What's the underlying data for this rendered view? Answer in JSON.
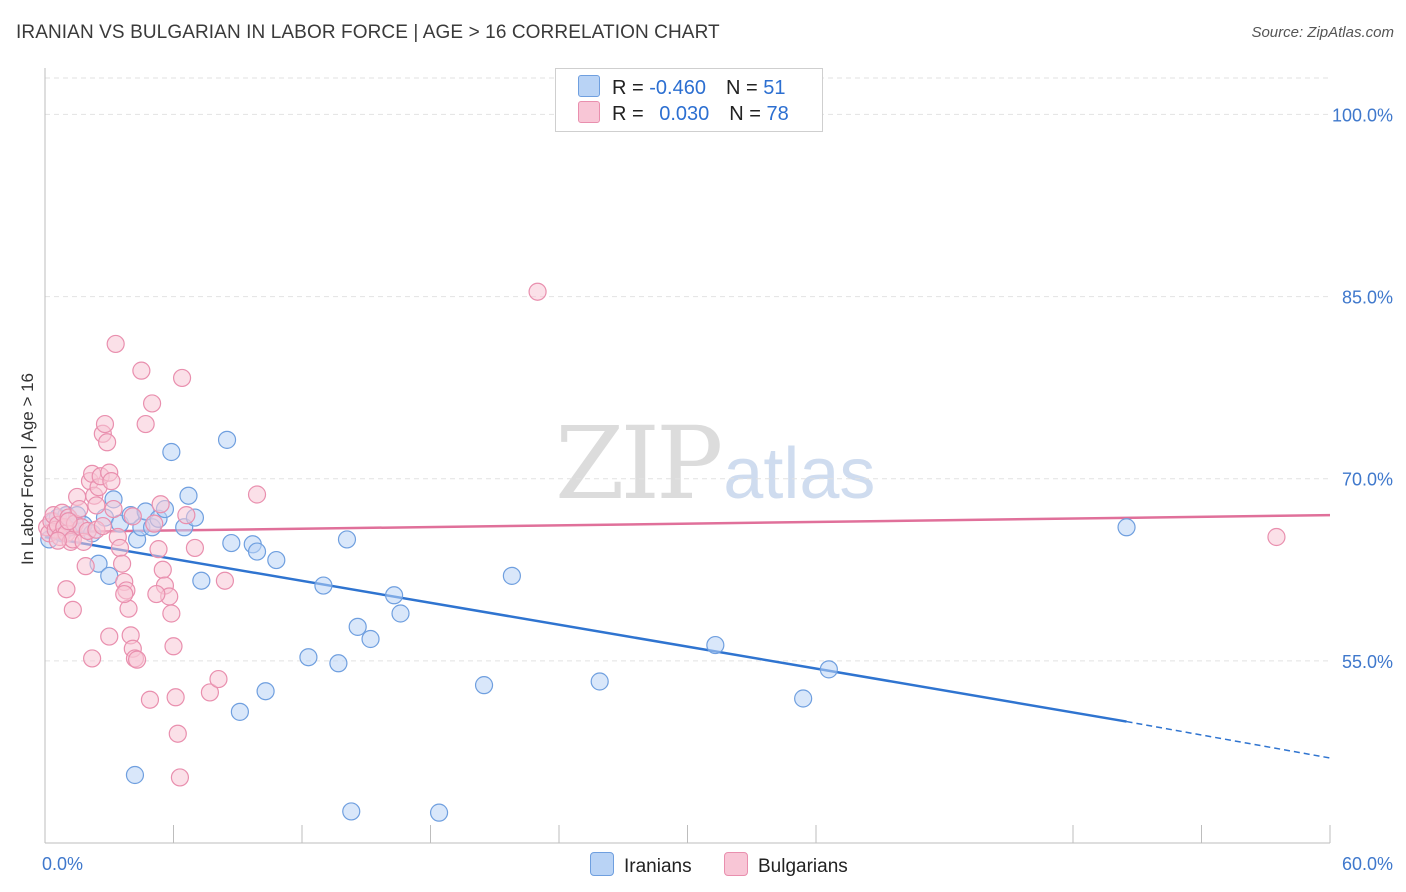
{
  "title": "IRANIAN VS BULGARIAN IN LABOR FORCE | AGE > 16 CORRELATION CHART",
  "source": "Source: ZipAtlas.com",
  "watermark": {
    "part1": "ZIP",
    "part2": "atlas"
  },
  "legend": {
    "rows": [
      {
        "r_label": "R = ",
        "r_value": "-0.460",
        "n_label": "N = ",
        "n_value": "51"
      },
      {
        "r_label": "R = ",
        "r_value": "0.030",
        "n_label": "N = ",
        "n_value": "78"
      }
    ]
  },
  "bottom_legend": {
    "iranians": "Iranians",
    "bulgarians": "Bulgarians"
  },
  "colors": {
    "iranian_fill": "#b9d3f5",
    "iranian_stroke": "#6f9fdf",
    "iranian_line": "#2f74d0",
    "bulgarian_fill": "#f8c6d6",
    "bulgarian_stroke": "#e98fae",
    "bulgarian_line": "#e0709a",
    "tick_label": "#3f78cc"
  },
  "chart_data": {
    "type": "scatter",
    "title": "IRANIAN VS BULGARIAN IN LABOR FORCE | AGE > 16 CORRELATION CHART",
    "xlabel": "",
    "ylabel": "In Labor Force | Age > 16",
    "xlim": [
      0,
      60
    ],
    "ylim": [
      40,
      103
    ],
    "x_tick_labels": [
      {
        "value": 0,
        "label": "0.0%"
      },
      {
        "value": 60,
        "label": "60.0%"
      }
    ],
    "y_tick_labels": [
      {
        "value": 55,
        "label": "55.0%"
      },
      {
        "value": 70,
        "label": "70.0%"
      },
      {
        "value": 85,
        "label": "85.0%"
      },
      {
        "value": 100,
        "label": "100.0%"
      }
    ],
    "x_minor_ticks": [
      6,
      12,
      18,
      24,
      30,
      36,
      48,
      54,
      60
    ],
    "grid": true,
    "series": [
      {
        "name": "Iranians",
        "color": "#6f9fdf",
        "points": [
          [
            0.2,
            65.0
          ],
          [
            0.4,
            66.5
          ],
          [
            0.6,
            66.8
          ],
          [
            0.8,
            65.5
          ],
          [
            1.0,
            67.0
          ],
          [
            1.2,
            66.0
          ],
          [
            1.5,
            67.0
          ],
          [
            1.8,
            66.2
          ],
          [
            2.2,
            65.5
          ],
          [
            2.5,
            63.0
          ],
          [
            2.8,
            66.8
          ],
          [
            3.0,
            62.0
          ],
          [
            3.2,
            68.3
          ],
          [
            3.5,
            66.3
          ],
          [
            4.0,
            67.0
          ],
          [
            4.3,
            65.0
          ],
          [
            4.5,
            66.0
          ],
          [
            4.7,
            67.3
          ],
          [
            5.0,
            66.0
          ],
          [
            5.3,
            66.7
          ],
          [
            5.6,
            67.5
          ],
          [
            5.9,
            72.2
          ],
          [
            6.5,
            66.0
          ],
          [
            6.7,
            68.6
          ],
          [
            7.0,
            66.8
          ],
          [
            7.3,
            61.6
          ],
          [
            8.5,
            73.2
          ],
          [
            8.7,
            64.7
          ],
          [
            9.1,
            50.8
          ],
          [
            9.7,
            64.6
          ],
          [
            9.9,
            64.0
          ],
          [
            10.3,
            52.5
          ],
          [
            10.8,
            63.3
          ],
          [
            12.3,
            55.3
          ],
          [
            13.0,
            61.2
          ],
          [
            13.7,
            54.8
          ],
          [
            14.1,
            65.0
          ],
          [
            14.3,
            42.6
          ],
          [
            14.6,
            57.8
          ],
          [
            15.2,
            56.8
          ],
          [
            16.3,
            60.4
          ],
          [
            16.6,
            58.9
          ],
          [
            18.4,
            42.5
          ],
          [
            20.5,
            53.0
          ],
          [
            21.8,
            62.0
          ],
          [
            25.9,
            53.3
          ],
          [
            31.3,
            56.3
          ],
          [
            35.4,
            51.9
          ],
          [
            36.6,
            54.3
          ],
          [
            50.5,
            66.0
          ],
          [
            4.2,
            45.6
          ]
        ]
      },
      {
        "name": "Bulgarians",
        "color": "#e98fae",
        "points": [
          [
            0.1,
            66.0
          ],
          [
            0.2,
            65.5
          ],
          [
            0.3,
            66.5
          ],
          [
            0.4,
            67.0
          ],
          [
            0.5,
            65.8
          ],
          [
            0.6,
            66.2
          ],
          [
            0.7,
            65.2
          ],
          [
            0.8,
            67.2
          ],
          [
            0.9,
            66.0
          ],
          [
            1.0,
            65.5
          ],
          [
            1.1,
            66.8
          ],
          [
            1.2,
            64.8
          ],
          [
            1.3,
            65.0
          ],
          [
            1.4,
            66.3
          ],
          [
            1.5,
            68.5
          ],
          [
            1.6,
            67.5
          ],
          [
            1.7,
            66.0
          ],
          [
            1.8,
            64.8
          ],
          [
            1.9,
            62.8
          ],
          [
            2.0,
            65.7
          ],
          [
            2.1,
            69.8
          ],
          [
            2.2,
            70.4
          ],
          [
            2.3,
            68.6
          ],
          [
            2.4,
            67.8
          ],
          [
            2.5,
            69.3
          ],
          [
            2.6,
            70.2
          ],
          [
            2.7,
            73.7
          ],
          [
            2.8,
            74.5
          ],
          [
            2.9,
            73.0
          ],
          [
            3.0,
            70.5
          ],
          [
            3.1,
            69.8
          ],
          [
            3.2,
            67.5
          ],
          [
            3.3,
            81.1
          ],
          [
            3.4,
            65.2
          ],
          [
            3.5,
            64.3
          ],
          [
            3.6,
            63.0
          ],
          [
            3.7,
            61.5
          ],
          [
            3.8,
            60.8
          ],
          [
            3.9,
            59.3
          ],
          [
            4.0,
            57.1
          ],
          [
            4.1,
            56.0
          ],
          [
            4.2,
            55.2
          ],
          [
            4.3,
            55.1
          ],
          [
            4.5,
            78.9
          ],
          [
            4.7,
            74.5
          ],
          [
            5.0,
            76.2
          ],
          [
            5.1,
            66.3
          ],
          [
            5.3,
            64.2
          ],
          [
            5.5,
            62.5
          ],
          [
            5.6,
            61.2
          ],
          [
            5.8,
            60.3
          ],
          [
            5.9,
            58.9
          ],
          [
            6.0,
            56.2
          ],
          [
            6.1,
            52.0
          ],
          [
            6.2,
            49.0
          ],
          [
            6.3,
            45.4
          ],
          [
            6.4,
            78.3
          ],
          [
            6.6,
            67.0
          ],
          [
            7.0,
            64.3
          ],
          [
            7.7,
            52.4
          ],
          [
            8.1,
            53.5
          ],
          [
            8.4,
            61.6
          ],
          [
            9.9,
            68.7
          ],
          [
            23.0,
            85.4
          ],
          [
            57.5,
            65.2
          ],
          [
            1.0,
            60.9
          ],
          [
            2.2,
            55.2
          ],
          [
            2.4,
            65.8
          ],
          [
            1.3,
            59.2
          ],
          [
            3.0,
            57.0
          ],
          [
            3.7,
            60.5
          ],
          [
            4.9,
            51.8
          ],
          [
            5.2,
            60.5
          ],
          [
            0.6,
            64.9
          ],
          [
            1.1,
            66.5
          ],
          [
            2.7,
            66.1
          ],
          [
            4.1,
            66.9
          ],
          [
            5.4,
            67.9
          ]
        ]
      }
    ],
    "trend_lines": [
      {
        "series": "Iranians",
        "x0": 0,
        "y0": 65.2,
        "x1": 50.5,
        "y1": 50.0,
        "dashed_to_x": 60,
        "dashed_to_y": 47.0
      },
      {
        "series": "Bulgarians",
        "x0": 0,
        "y0": 65.6,
        "x1": 60,
        "y1": 67.0
      }
    ]
  }
}
